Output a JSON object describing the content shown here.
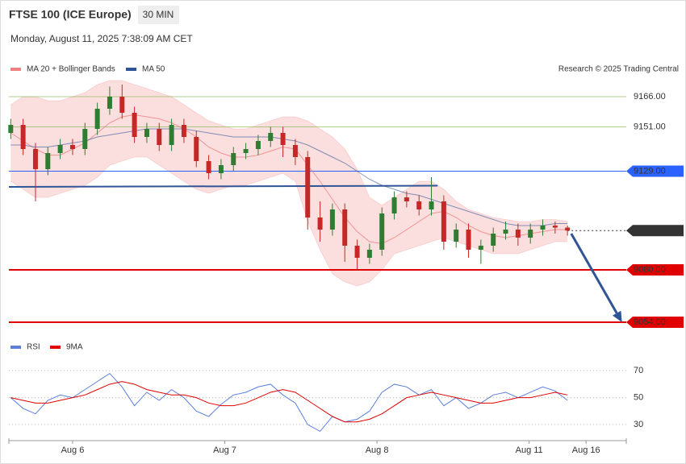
{
  "header": {
    "title": "FTSE 100 (ICE Europe)",
    "interval": "30 MIN",
    "timestamp": "Monday, August 11, 2025 7:38:09 AM CET",
    "credit": "Research © 2025 Trading Central"
  },
  "chart_data": [
    {
      "type": "candlestick",
      "xlim": [
        -0.15,
        49.75
      ],
      "ylim": [
        9050,
        9174
      ],
      "up_color": "#2e7d32",
      "down_color": "#c62828",
      "open": [
        9148,
        9152,
        9140,
        9130,
        9138,
        9142,
        9140,
        9150,
        9160,
        9166,
        9158,
        9146,
        9150,
        9142,
        9152,
        9146,
        9134,
        9128,
        9132,
        9138,
        9140,
        9144,
        9148,
        9142,
        9136,
        9106,
        9100,
        9110,
        9092,
        9086,
        9090,
        9108,
        9116,
        9114,
        9110,
        9114,
        9094,
        9100,
        9090,
        9092,
        9098,
        9100,
        9096,
        9100,
        9102,
        9101
      ],
      "high": [
        9155,
        9155,
        9143,
        9141,
        9145,
        9145,
        9153,
        9163,
        9171,
        9172,
        9161,
        9153,
        9153,
        9155,
        9155,
        9149,
        9137,
        9135,
        9141,
        9143,
        9147,
        9151,
        9151,
        9145,
        9139,
        9114,
        9113,
        9113,
        9095,
        9093,
        9111,
        9119,
        9119,
        9117,
        9126,
        9117,
        9103,
        9103,
        9095,
        9101,
        9104,
        9103,
        9103,
        9105,
        9104,
        9102
      ],
      "low": [
        9145,
        9137,
        9114,
        9127,
        9135,
        9137,
        9137,
        9147,
        9157,
        9155,
        9143,
        9143,
        9139,
        9139,
        9143,
        9131,
        9125,
        9125,
        9129,
        9135,
        9137,
        9141,
        9136,
        9132,
        9100,
        9094,
        9097,
        9084,
        9080,
        9083,
        9087,
        9105,
        9111,
        9107,
        9107,
        9090,
        9091,
        9086,
        9083,
        9089,
        9095,
        9092,
        9093,
        9097,
        9098,
        9097
      ],
      "close": [
        9152,
        9140,
        9130,
        9138,
        9142,
        9140,
        9150,
        9160,
        9166,
        9158,
        9146,
        9150,
        9142,
        9152,
        9146,
        9134,
        9128,
        9132,
        9138,
        9140,
        9144,
        9148,
        9142,
        9136,
        9106,
        9100,
        9110,
        9092,
        9086,
        9090,
        9108,
        9116,
        9114,
        9110,
        9114,
        9094,
        9100,
        9090,
        9092,
        9098,
        9100,
        9096,
        9100,
        9102,
        9101,
        9099.5
      ],
      "series": [
        {
          "name": "MA 20 + Bollinger Bands",
          "color": "#f08080",
          "values": [
            9148,
            9144,
            9140,
            9137,
            9137,
            9140,
            9143,
            9148,
            9153,
            9156,
            9157,
            9156,
            9155,
            9153,
            9150,
            9146,
            9141,
            9138,
            9136,
            9136,
            9137,
            9139,
            9141,
            9140,
            9132,
            9124,
            9115,
            9106,
            9099,
            9094,
            9093,
            9096,
            9100,
            9104,
            9108,
            9109,
            9106,
            9102,
            9099,
            9097,
            9096,
            9097,
            9098,
            9099,
            9100,
            9100
          ],
          "upper": [
            9162,
            9166,
            9166,
            9164,
            9164,
            9166,
            9168,
            9172,
            9174,
            9174,
            9172,
            9170,
            9168,
            9166,
            9162,
            9158,
            9154,
            9152,
            9150,
            9150,
            9152,
            9154,
            9156,
            9156,
            9154,
            9150,
            9146,
            9140,
            9130,
            9116,
            9112,
            9116,
            9120,
            9124,
            9124,
            9120,
            9114,
            9110,
            9108,
            9106,
            9105,
            9104,
            9104,
            9105,
            9105,
            9104
          ],
          "lower": [
            9124,
            9120,
            9116,
            9116,
            9118,
            9120,
            9122,
            9126,
            9132,
            9134,
            9136,
            9136,
            9132,
            9128,
            9124,
            9120,
            9118,
            9120,
            9122,
            9122,
            9124,
            9126,
            9128,
            9124,
            9104,
            9090,
            9078,
            9074,
            9072,
            9074,
            9080,
            9088,
            9090,
            9092,
            9094,
            9096,
            9094,
            9092,
            9090,
            9088,
            9088,
            9088,
            9090,
            9092,
            9094,
            9094
          ]
        },
        {
          "name": "MA 50",
          "color": "#2f5597",
          "values": [
            9142,
            9142,
            9141,
            9141,
            9142,
            9143,
            9144,
            9146,
            9147,
            9148,
            9149,
            9150,
            9150,
            9150,
            9150,
            9149,
            9148,
            9147,
            9146,
            9146,
            9146,
            9146,
            9145,
            9144,
            9142,
            9139,
            9136,
            9133,
            9129,
            9125,
            9122,
            9120,
            9118,
            9117,
            9115,
            9113,
            9111,
            9109,
            9107,
            9105,
            9103,
            9102,
            9102,
            9102,
            9103,
            9103
          ]
        }
      ],
      "levels": [
        {
          "value": 9166,
          "label": "9166.00",
          "color": "#7cb342",
          "boxed": false,
          "dash": false
        },
        {
          "value": 9151,
          "label": "9151.00",
          "color": "#7cb342",
          "boxed": false,
          "dash": false
        },
        {
          "value": 9129,
          "label": "9129.00",
          "color": "#2962ff",
          "boxed": true,
          "dash": false
        },
        {
          "value": 9099.5,
          "label": "9099.50",
          "color": "#333333",
          "boxed": true,
          "dash": true
        },
        {
          "value": 9080,
          "label": "9080.00",
          "color": "#e00000",
          "boxed": true,
          "dash": false
        },
        {
          "value": 9054,
          "label": "9054.00",
          "color": "#e00000",
          "boxed": true,
          "dash": false
        }
      ],
      "trendline": {
        "x": [
          -0.15,
          34.5
        ],
        "y": [
          9121.2,
          9121.8
        ],
        "color": "#2f5597"
      },
      "arrow": {
        "x": [
          45.3,
          49.4
        ],
        "y": [
          9098,
          9054
        ],
        "color": "#2f5597"
      }
    },
    {
      "type": "line",
      "xlim": [
        -0.15,
        49.75
      ],
      "ylim": [
        20,
        75
      ],
      "yticks": [
        30,
        50,
        70
      ],
      "xticks": [
        {
          "value": 5,
          "label": "Aug 6"
        },
        {
          "value": 17.3,
          "label": "Aug 7"
        },
        {
          "value": 29.6,
          "label": "Aug 8"
        },
        {
          "value": 41.9,
          "label": "Aug 11"
        },
        {
          "value": 46.5,
          "label": "Aug 16"
        }
      ],
      "series": [
        {
          "name": "RSI",
          "color": "#5b7fdb",
          "values": [
            50,
            42,
            38,
            48,
            52,
            50,
            56,
            62,
            68,
            58,
            44,
            54,
            48,
            56,
            50,
            40,
            36,
            45,
            52,
            54,
            58,
            60,
            52,
            46,
            30,
            25,
            36,
            32,
            34,
            40,
            54,
            60,
            58,
            52,
            56,
            44,
            50,
            42,
            46,
            52,
            54,
            50,
            54,
            58,
            55,
            48
          ]
        },
        {
          "name": "9MA",
          "color": "#e00000",
          "values": [
            50,
            48,
            46,
            46,
            48,
            50,
            52,
            56,
            60,
            62,
            60,
            56,
            54,
            52,
            52,
            50,
            46,
            44,
            44,
            46,
            50,
            54,
            56,
            54,
            48,
            42,
            36,
            32,
            32,
            34,
            38,
            44,
            50,
            52,
            54,
            52,
            50,
            48,
            46,
            46,
            48,
            50,
            50,
            52,
            54,
            52
          ]
        }
      ]
    }
  ]
}
